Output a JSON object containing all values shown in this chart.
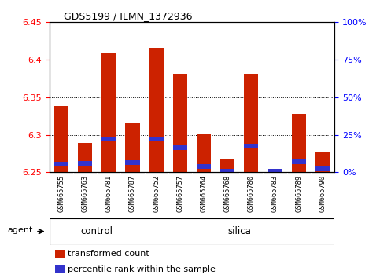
{
  "title": "GDS5199 / ILMN_1372936",
  "samples": [
    "GSM665755",
    "GSM665763",
    "GSM665781",
    "GSM665787",
    "GSM665752",
    "GSM665757",
    "GSM665764",
    "GSM665768",
    "GSM665780",
    "GSM665783",
    "GSM665789",
    "GSM665790"
  ],
  "n_control": 4,
  "n_silica": 8,
  "red_values": [
    6.338,
    6.289,
    6.408,
    6.316,
    6.416,
    6.381,
    6.301,
    6.268,
    6.381,
    6.255,
    6.328,
    6.278
  ],
  "blue_values": [
    6.261,
    6.262,
    6.295,
    6.263,
    6.295,
    6.283,
    6.258,
    6.252,
    6.285,
    6.252,
    6.264,
    6.255
  ],
  "ymin": 6.25,
  "ymax": 6.45,
  "y_ticks": [
    6.25,
    6.3,
    6.35,
    6.4,
    6.45
  ],
  "y2_ticks": [
    0,
    25,
    50,
    75,
    100
  ],
  "y2_labels": [
    "0%",
    "25%",
    "50%",
    "75%",
    "100%"
  ],
  "bar_color": "#cc2200",
  "blue_color": "#3333cc",
  "bar_width": 0.6,
  "grid_yticks": [
    6.3,
    6.35,
    6.4
  ],
  "green_color": "#90ee90",
  "gray_color": "#c8c8c8",
  "agent_label": "agent",
  "ctrl_label": "control",
  "sil_label": "silica"
}
